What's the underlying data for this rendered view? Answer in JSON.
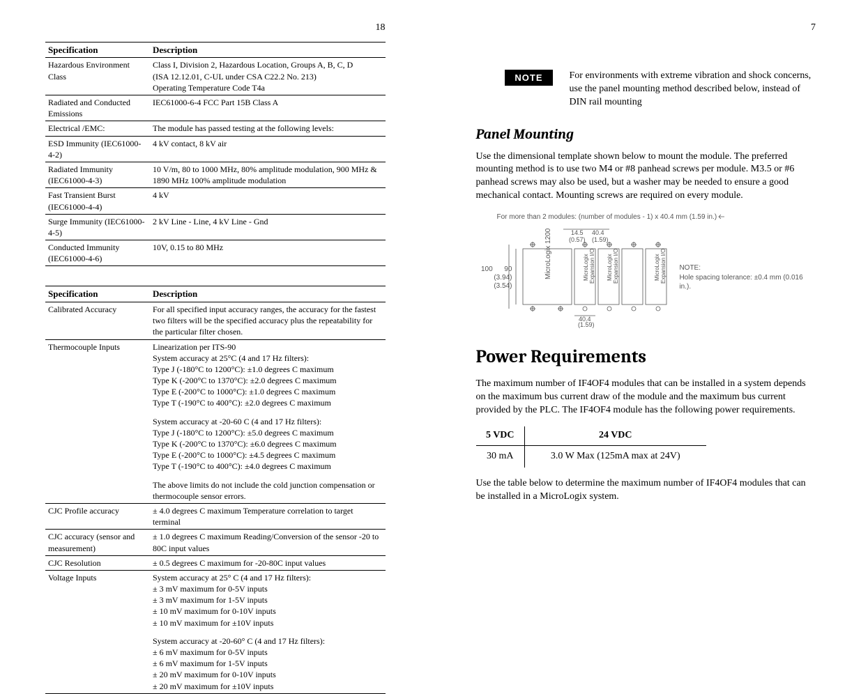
{
  "page_left_num": "18",
  "page_right_num": "7",
  "table1": {
    "head_spec": "Specification",
    "head_desc": "Description",
    "rows": [
      {
        "spec": "Hazardous Environment Class",
        "desc": "Class I, Division 2, Hazardous Location, Groups A, B, C, D\n(ISA 12.12.01, C-UL under CSA C22.2 No. 213)\nOperating Temperature Code T4a"
      },
      {
        "spec": "Radiated and Conducted Emissions",
        "desc": "IEC61000-6-4 FCC Part 15B Class A"
      },
      {
        "spec": "Electrical /EMC:",
        "desc": "The module has passed testing at the following levels:"
      },
      {
        "spec": "ESD Immunity (IEC61000-4-2)",
        "desc": "4 kV contact, 8 kV air"
      },
      {
        "spec": "Radiated Immunity (IEC61000-4-3)",
        "desc": "10 V/m, 80 to 1000 MHz, 80% amplitude modulation, 900 MHz & 1890 MHz 100% amplitude modulation"
      },
      {
        "spec": "Fast Transient Burst (IEC61000-4-4)",
        "desc": "4 kV"
      },
      {
        "spec": "Surge Immunity (IEC61000-4-5)",
        "desc": "2 kV Line - Line, 4 kV Line - Gnd"
      },
      {
        "spec": "Conducted Immunity (IEC61000-4-6)",
        "desc": "10V, 0.15 to 80 MHz"
      }
    ]
  },
  "table2": {
    "head_spec": "Specification",
    "head_desc": "Description",
    "rows": [
      {
        "spec": "Calibrated Accuracy",
        "desc": "For all specified input accuracy ranges, the accuracy for the fastest two filters will be the specified accuracy plus the repeatability for the particular filter chosen."
      },
      {
        "spec": "Thermocouple Inputs",
        "desc_html": [
          "Linearization per ITS-90",
          "System accuracy at 25°C (4 and 17 Hz filters):",
          "Type J (-180°C to 1200°C): ±1.0 degrees C maximum",
          "Type K (-200°C to 1370°C): ±2.0 degrees C maximum",
          "Type E (-200°C to 1000°C): ±1.0 degrees C maximum",
          "Type T (-190°C to 400°C): ±2.0 degrees C maximum",
          "",
          "System accuracy at -20-60 C (4 and 17 Hz filters):",
          "Type J (-180°C to 1200°C): ±5.0 degrees C maximum",
          "Type K (-200°C to 1370°C): ±6.0 degrees C maximum",
          "Type E (-200°C to 1000°C): ±4.5 degrees C maximum",
          "Type T (-190°C to 400°C): ±4.0 degrees C maximum",
          "",
          "The above limits do not include the cold junction compensation or thermocouple sensor errors."
        ]
      },
      {
        "spec": "CJC Profile accuracy",
        "desc": "± 4.0 degrees C maximum  Temperature correlation to target terminal"
      },
      {
        "spec": "CJC accuracy (sensor and measurement)",
        "desc": "± 1.0 degrees C maximum  Reading/Conversion of the sensor -20 to 80C input values"
      },
      {
        "spec": "CJC Resolution",
        "desc": "± 0.5 degrees C maximum for -20-80C input values"
      },
      {
        "spec": "Voltage Inputs",
        "desc_html": [
          "System accuracy at 25° C (4 and 17 Hz filters):",
          "± 3 mV maximum for 0-5V inputs",
          "± 3 mV maximum for 1-5V inputs",
          "± 10 mV maximum for 0-10V inputs",
          "± 10 mV maximum for ±10V inputs",
          "",
          "System accuracy at -20-60° C (4 and 17 Hz filters):",
          "± 6 mV maximum for 0-5V inputs",
          "± 6 mV maximum for 1-5V inputs",
          "± 20 mV maximum for 0-10V inputs",
          "± 20 mV maximum for ±10V inputs"
        ]
      }
    ]
  },
  "note_label": "NOTE",
  "note_text": "For environments with extreme vibration and shock concerns, use the panel mounting method described below, instead of DIN rail mounting",
  "panel_heading": "Panel Mounting",
  "panel_body": "Use the dimensional template shown below to mount the module. The preferred mounting method is to use two M4 or #8 panhead screws per module. M3.5 or #6 panhead screws may also be used, but a washer may be needed to ensure a good mechanical contact. Mounting screws are required on every module.",
  "diagram": {
    "caption_top": "For more than 2 modules: (number of modules - 1) x 40.4 mm (1.59 in.)",
    "left_dim": "100      90",
    "left_dim2": "(3.94)(3.54)",
    "main_label": "MicroLogix 1200",
    "exp_label": "MicroLogix\nExpansion I/O",
    "dim_145": "14.5",
    "dim_057": "(0.57)",
    "dim_404": "40.4",
    "dim_159": "(1.59)",
    "dim_404b": "40.4",
    "dim_159b": "(1.59)",
    "note_label": "NOTE:",
    "note_text": "Hole spacing tolerance: ±0.4 mm (0.016 in.)."
  },
  "power_heading": "Power Requirements",
  "power_body1": "The maximum number of IF4OF4 modules that can be installed in a system depends on the maximum bus current draw of the module and the maximum bus current provided by the PLC.  The IF4OF4 module has the following power requirements.",
  "power_table": {
    "h1": "5 VDC",
    "h2": "24 VDC",
    "c1": "30 mA",
    "c2": "3.0 W Max (125mA max at 24V)"
  },
  "power_body2": "Use the table below to determine the maximum number of IF4OF4 modules that can be installed in a MicroLogix system."
}
